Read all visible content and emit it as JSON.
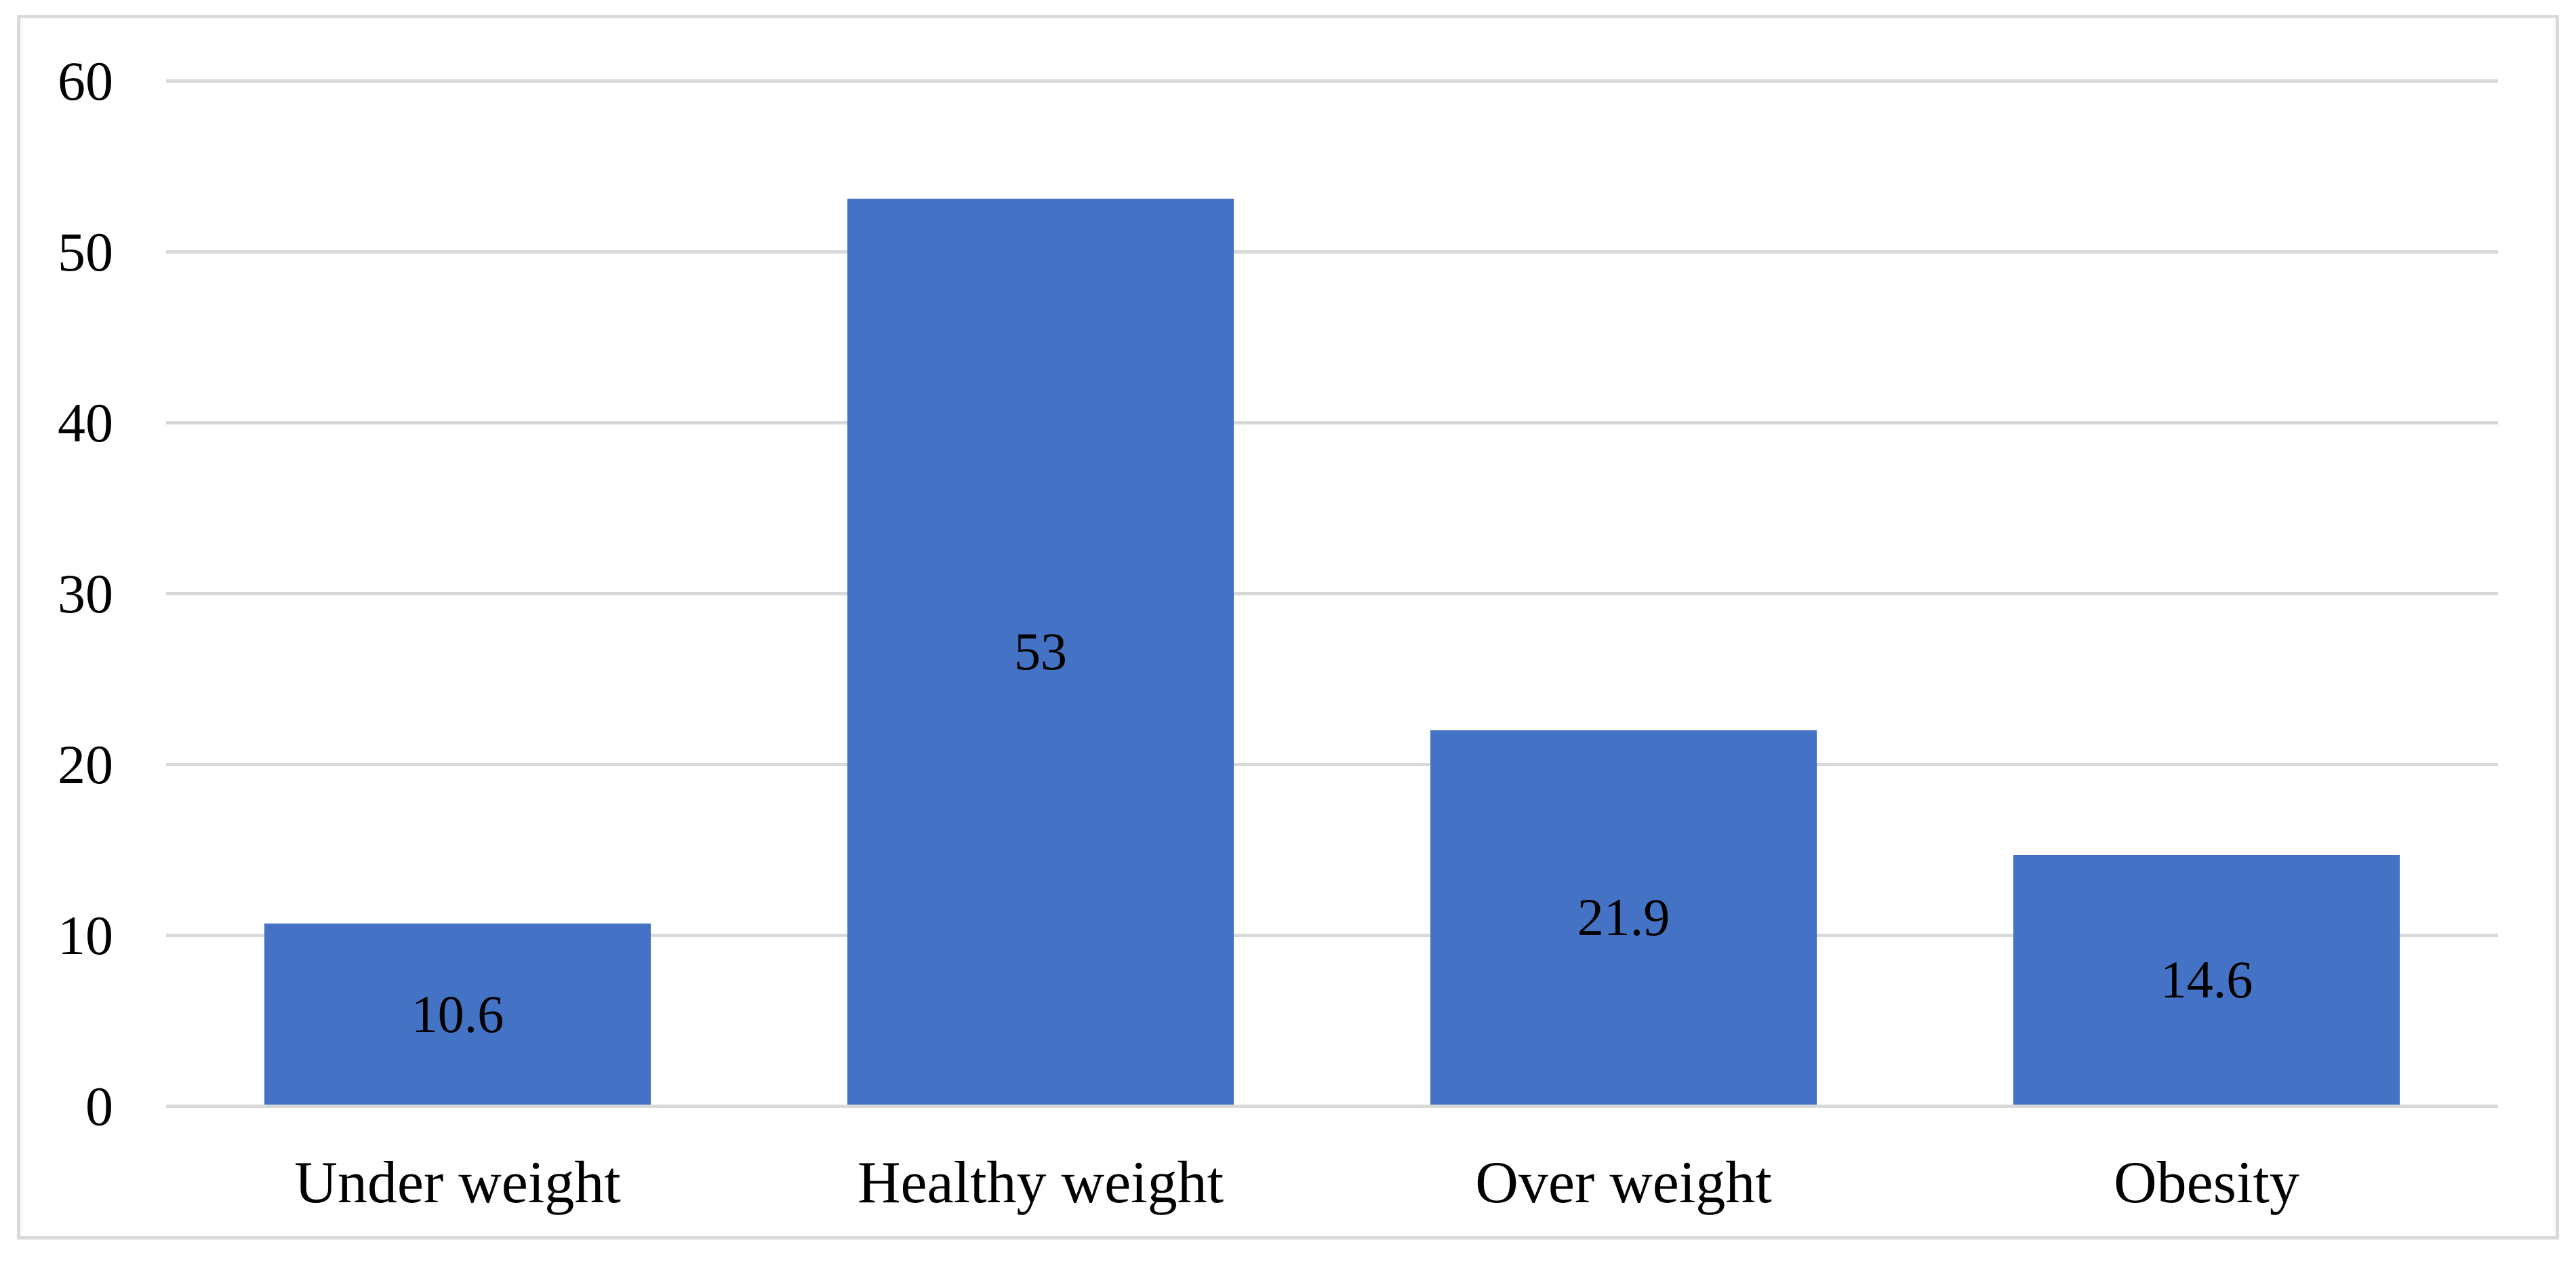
{
  "chart_data": {
    "type": "bar",
    "title": "",
    "xlabel": "",
    "ylabel": "",
    "categories": [
      "Under weight",
      "Healthy weight",
      "Over weight",
      "Obesity"
    ],
    "values": [
      10.6,
      53,
      21.9,
      14.6
    ],
    "data_labels": [
      "10.6",
      "53",
      "21.9",
      "14.6"
    ],
    "data_label_position": "center-inside-bar",
    "y_ticks": [
      0,
      10,
      20,
      30,
      40,
      50,
      60
    ],
    "y_tick_labels": [
      "0",
      "10",
      "20",
      "30",
      "40",
      "50",
      "60"
    ],
    "ylim": [
      0,
      60
    ],
    "grid": "horizontal-gridlines-on",
    "legend": "none",
    "colors": {
      "bar_fill": "#4472C4",
      "gridline": "#D9D9D9",
      "chart_border": "#D9D9D9",
      "text": "#000000",
      "background": "#FFFFFF"
    }
  }
}
